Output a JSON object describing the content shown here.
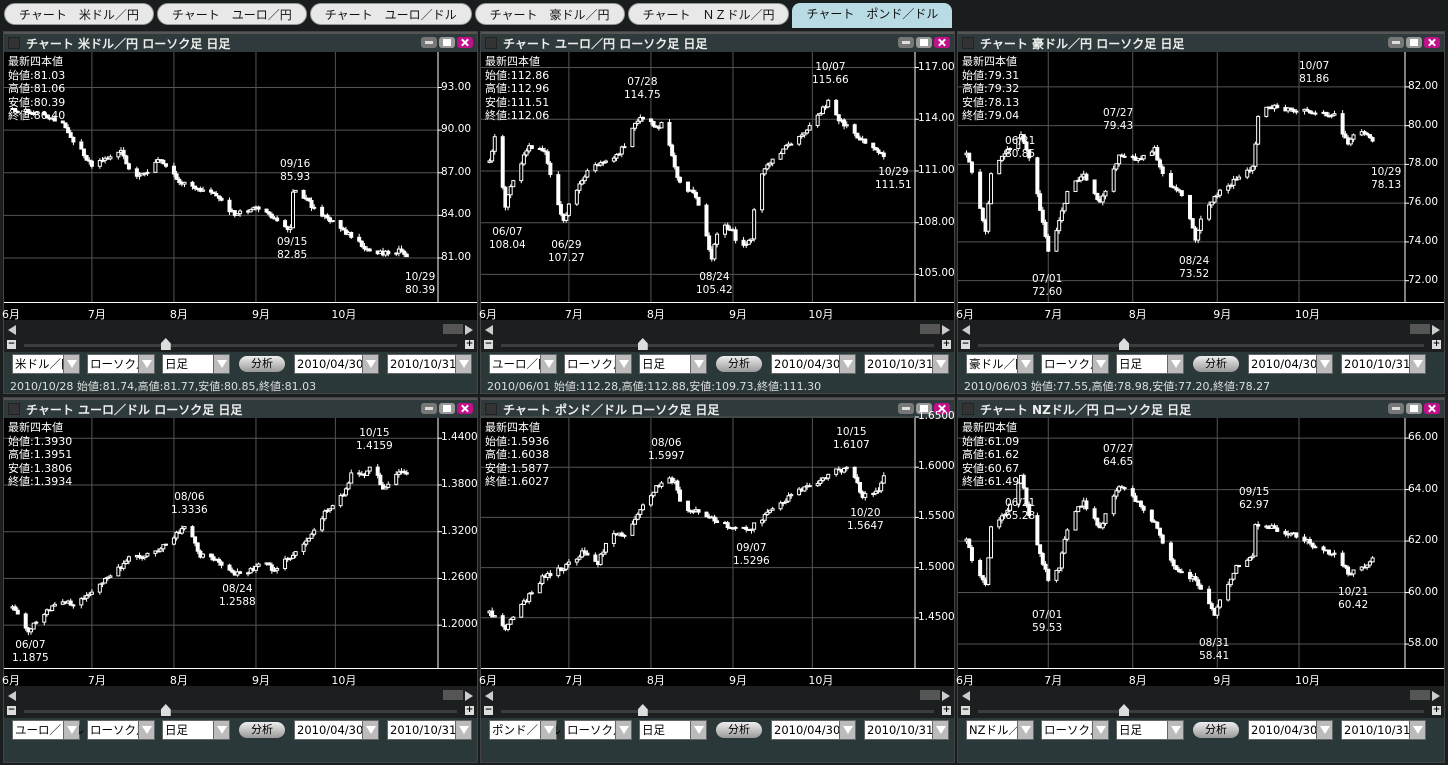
{
  "tabs": [
    {
      "label": "チャート　米ドル／円",
      "active": false
    },
    {
      "label": "チャート　ユーロ／円",
      "active": false
    },
    {
      "label": "チャート　ユーロ／ドル",
      "active": false
    },
    {
      "label": "チャート　豪ドル／円",
      "active": false
    },
    {
      "label": "チャート　ＮＺドル／円",
      "active": false
    },
    {
      "label": "チャート　ポンド／ドル",
      "active": true
    }
  ],
  "common": {
    "info_heading": "最新四本値",
    "open_label": "始値:",
    "high_label": "高値:",
    "low_label": "安値:",
    "close_label": "終値:",
    "months": [
      "6月",
      "7月",
      "8月",
      "9月",
      "10月"
    ],
    "chart_type": "ローソク足",
    "period": "日足",
    "analyze_label": "分析",
    "start_date": "2010/04/30",
    "end_date": "2010/10/31",
    "minus": "−",
    "plus": "+",
    "colors": {
      "background": "#000000",
      "candle": "#ffffff",
      "grid": "#555555",
      "panel": "#2a383a",
      "close_button": "#c0108a",
      "active_tab": "#b9dbe3"
    }
  },
  "panels": [
    {
      "title": "チャート 米ドル／円 ローソク足 日足",
      "symbol": "米ドル／円",
      "info": {
        "open": "81.03",
        "high": "81.06",
        "low": "80.39",
        "close": "80.40"
      },
      "status": "2010/10/28 始値:81.74,高値:81.77,安値:80.85,終値:81.03",
      "chart_data": {
        "type": "candlestick",
        "ylim": [
          77.9,
          95.5
        ],
        "yticks": [
          81,
          84,
          87,
          90,
          93
        ],
        "ytick_labels": [
          "81.00",
          "84.00",
          "87.00",
          "90.00",
          "93.00"
        ],
        "path": [
          [
            "06-01",
            91.5
          ],
          [
            "06-10",
            91.2
          ],
          [
            "06-20",
            90.5
          ],
          [
            "06-25",
            89.0
          ],
          [
            "07-01",
            87.5
          ],
          [
            "07-05",
            87.8
          ],
          [
            "07-12",
            88.7
          ],
          [
            "07-16",
            86.8
          ],
          [
            "07-22",
            87.0
          ],
          [
            "07-27",
            88.0
          ],
          [
            "08-02",
            86.5
          ],
          [
            "08-10",
            85.8
          ],
          [
            "08-16",
            85.5
          ],
          [
            "08-24",
            84.0
          ],
          [
            "08-31",
            84.5
          ],
          [
            "09-08",
            83.9
          ],
          [
            "09-14",
            83.0
          ],
          [
            "09-15",
            85.5
          ],
          [
            "09-16",
            85.8
          ],
          [
            "09-22",
            84.7
          ],
          [
            "09-30",
            83.5
          ],
          [
            "10-07",
            82.5
          ],
          [
            "10-14",
            81.5
          ],
          [
            "10-22",
            81.3
          ],
          [
            "10-26",
            81.6
          ],
          [
            "10-29",
            80.6
          ]
        ],
        "annotations": [
          {
            "date": "09/16",
            "value": "85.93",
            "kind": "high"
          },
          {
            "date": "09/15",
            "value": "82.85",
            "kind": "low"
          },
          {
            "date": "10/29",
            "value": "80.39",
            "kind": "low"
          }
        ]
      }
    },
    {
      "title": "チャート ユーロ／円 ローソク足 日足",
      "symbol": "ユーロ／円",
      "info": {
        "open": "112.86",
        "high": "112.96",
        "low": "111.51",
        "close": "112.06"
      },
      "status": "2010/06/01 始値:112.28,高値:112.88,安値:109.73,終値:111.30",
      "chart_data": {
        "type": "candlestick",
        "ylim": [
          103.4,
          117.9
        ],
        "yticks": [
          105,
          108,
          111,
          114,
          117
        ],
        "ytick_labels": [
          "105.00",
          "108.00",
          "111.00",
          "114.00",
          "117.00"
        ],
        "path": [
          [
            "06-01",
            111.5
          ],
          [
            "06-03",
            113.0
          ],
          [
            "06-07",
            109.0
          ],
          [
            "06-10",
            110.5
          ],
          [
            "06-16",
            112.5
          ],
          [
            "06-22",
            112.0
          ],
          [
            "06-29",
            108.0
          ],
          [
            "07-02",
            109.5
          ],
          [
            "07-08",
            111.0
          ],
          [
            "07-14",
            111.5
          ],
          [
            "07-20",
            112.0
          ],
          [
            "07-28",
            114.2
          ],
          [
            "08-03",
            113.5
          ],
          [
            "08-06",
            113.8
          ],
          [
            "08-11",
            110.5
          ],
          [
            "08-18",
            109.5
          ],
          [
            "08-24",
            106.0
          ],
          [
            "08-27",
            108.0
          ],
          [
            "09-01",
            107.5
          ],
          [
            "09-03",
            106.5
          ],
          [
            "09-08",
            107.0
          ],
          [
            "09-10",
            110.5
          ],
          [
            "09-15",
            111.5
          ],
          [
            "09-22",
            112.5
          ],
          [
            "09-30",
            113.5
          ],
          [
            "10-07",
            115.0
          ],
          [
            "10-11",
            114.0
          ],
          [
            "10-18",
            113.0
          ],
          [
            "10-22",
            112.5
          ],
          [
            "10-29",
            111.7
          ]
        ],
        "annotations": [
          {
            "date": "07/28",
            "value": "114.75",
            "kind": "high"
          },
          {
            "date": "10/07",
            "value": "115.66",
            "kind": "high"
          },
          {
            "date": "06/07",
            "value": "108.04",
            "kind": "low"
          },
          {
            "date": "06/29",
            "value": "107.27",
            "kind": "low"
          },
          {
            "date": "08/24",
            "value": "105.42",
            "kind": "low"
          },
          {
            "date": "10/29",
            "value": "111.51",
            "kind": "low"
          }
        ]
      }
    },
    {
      "title": "チャート 豪ドル／円 ローソク足 日足",
      "symbol": "豪ドル／円",
      "info": {
        "open": "79.31",
        "high": "79.32",
        "low": "78.13",
        "close": "79.04"
      },
      "status": "2010/06/03 始値:77.55,高値:78.98,安値:77.20,終値:78.27",
      "chart_data": {
        "type": "candlestick",
        "ylim": [
          70.9,
          83.8
        ],
        "yticks": [
          72,
          74,
          76,
          78,
          80,
          82
        ],
        "ytick_labels": [
          "72.00",
          "74.00",
          "76.00",
          "78.00",
          "80.00",
          "82.00"
        ],
        "path": [
          [
            "06-01",
            78.5
          ],
          [
            "06-04",
            77.0
          ],
          [
            "06-08",
            74.5
          ],
          [
            "06-10",
            77.5
          ],
          [
            "06-15",
            78.5
          ],
          [
            "06-21",
            79.5
          ],
          [
            "06-25",
            78.0
          ],
          [
            "07-01",
            73.5
          ],
          [
            "07-06",
            75.5
          ],
          [
            "07-09",
            77.0
          ],
          [
            "07-14",
            77.5
          ],
          [
            "07-20",
            76.0
          ],
          [
            "07-27",
            78.5
          ],
          [
            "08-03",
            78.2
          ],
          [
            "08-09",
            78.8
          ],
          [
            "08-13",
            77.0
          ],
          [
            "08-19",
            76.5
          ],
          [
            "08-24",
            74.2
          ],
          [
            "08-27",
            75.5
          ],
          [
            "09-03",
            76.8
          ],
          [
            "09-08",
            77.2
          ],
          [
            "09-14",
            77.8
          ],
          [
            "09-16",
            80.5
          ],
          [
            "09-20",
            81.0
          ],
          [
            "09-30",
            80.8
          ],
          [
            "10-07",
            80.7
          ],
          [
            "10-14",
            80.5
          ],
          [
            "10-19",
            79.0
          ],
          [
            "10-22",
            79.7
          ],
          [
            "10-26",
            79.5
          ],
          [
            "10-29",
            78.9
          ]
        ],
        "annotations": [
          {
            "date": "06/21",
            "value": "80.85",
            "kind": "high"
          },
          {
            "date": "07/27",
            "value": "79.43",
            "kind": "high"
          },
          {
            "date": "10/07",
            "value": "81.86",
            "kind": "high"
          },
          {
            "date": "07/01",
            "value": "72.60",
            "kind": "low"
          },
          {
            "date": "08/24",
            "value": "73.52",
            "kind": "low"
          },
          {
            "date": "10/29",
            "value": "78.13",
            "kind": "low"
          }
        ]
      }
    },
    {
      "title": "チャート ユーロ／ドル ローソク足 日足",
      "symbol": "ユーロ／ドル",
      "info": {
        "open": "1.3930",
        "high": "1.3951",
        "low": "1.3806",
        "close": "1.3934"
      },
      "status": "",
      "chart_data": {
        "type": "candlestick",
        "ylim": [
          1.145,
          1.466
        ],
        "yticks": [
          1.2,
          1.26,
          1.32,
          1.38,
          1.44
        ],
        "ytick_labels": [
          "1.2000",
          "1.2600",
          "1.3200",
          "1.3800",
          "1.4400"
        ],
        "path": [
          [
            "06-01",
            1.222
          ],
          [
            "06-07",
            1.193
          ],
          [
            "06-10",
            1.205
          ],
          [
            "06-18",
            1.232
          ],
          [
            "06-25",
            1.225
          ],
          [
            "07-01",
            1.245
          ],
          [
            "07-08",
            1.262
          ],
          [
            "07-15",
            1.285
          ],
          [
            "07-23",
            1.29
          ],
          [
            "07-30",
            1.306
          ],
          [
            "08-06",
            1.33
          ],
          [
            "08-11",
            1.29
          ],
          [
            "08-17",
            1.285
          ],
          [
            "08-24",
            1.267
          ],
          [
            "08-31",
            1.27
          ],
          [
            "09-03",
            1.283
          ],
          [
            "09-08",
            1.27
          ],
          [
            "09-13",
            1.285
          ],
          [
            "09-20",
            1.305
          ],
          [
            "09-27",
            1.345
          ],
          [
            "10-04",
            1.37
          ],
          [
            "10-07",
            1.393
          ],
          [
            "10-12",
            1.39
          ],
          [
            "10-15",
            1.405
          ],
          [
            "10-19",
            1.375
          ],
          [
            "10-25",
            1.395
          ],
          [
            "10-29",
            1.393
          ]
        ],
        "annotations": [
          {
            "date": "08/06",
            "value": "1.3336",
            "kind": "high"
          },
          {
            "date": "10/15",
            "value": "1.4159",
            "kind": "high"
          },
          {
            "date": "06/07",
            "value": "1.1875",
            "kind": "low"
          },
          {
            "date": "08/24",
            "value": "1.2588",
            "kind": "low"
          }
        ]
      }
    },
    {
      "title": "チャート ポンド／ドル ローソク足 日足",
      "symbol": "ポンド／ドル",
      "info": {
        "open": "1.5936",
        "high": "1.6038",
        "low": "1.5877",
        "close": "1.6027"
      },
      "status": "",
      "chart_data": {
        "type": "candlestick",
        "ylim": [
          1.4,
          1.649
        ],
        "yticks": [
          1.45,
          1.5,
          1.55,
          1.6,
          1.65
        ],
        "ytick_labels": [
          "1.4500",
          "1.5000",
          "1.5500",
          "1.6000",
          "1.6500"
        ],
        "path": [
          [
            "06-01",
            1.455
          ],
          [
            "06-07",
            1.44
          ],
          [
            "06-14",
            1.465
          ],
          [
            "06-21",
            1.49
          ],
          [
            "06-29",
            1.5
          ],
          [
            "07-06",
            1.515
          ],
          [
            "07-12",
            1.505
          ],
          [
            "07-16",
            1.53
          ],
          [
            "07-23",
            1.535
          ],
          [
            "07-30",
            1.565
          ],
          [
            "08-06",
            1.59
          ],
          [
            "08-10",
            1.585
          ],
          [
            "08-13",
            1.56
          ],
          [
            "08-20",
            1.555
          ],
          [
            "08-26",
            1.545
          ],
          [
            "09-07",
            1.537
          ],
          [
            "09-10",
            1.545
          ],
          [
            "09-15",
            1.555
          ],
          [
            "09-24",
            1.575
          ],
          [
            "10-01",
            1.582
          ],
          [
            "10-08",
            1.595
          ],
          [
            "10-15",
            1.598
          ],
          [
            "10-20",
            1.572
          ],
          [
            "10-26",
            1.575
          ],
          [
            "10-29",
            1.603
          ]
        ],
        "annotations": [
          {
            "date": "08/06",
            "value": "1.5997",
            "kind": "high"
          },
          {
            "date": "10/15",
            "value": "1.6107",
            "kind": "high"
          },
          {
            "date": "09/07",
            "value": "1.5296",
            "kind": "low"
          },
          {
            "date": "10/20",
            "value": "1.5647",
            "kind": "low"
          }
        ]
      }
    },
    {
      "title": "チャート NZドル／円 ローソク足 日足",
      "symbol": "NZドル／円",
      "info": {
        "open": "61.09",
        "high": "61.62",
        "low": "60.67",
        "close": "61.49"
      },
      "status": "",
      "chart_data": {
        "type": "candlestick",
        "ylim": [
          57.07,
          66.78
        ],
        "yticks": [
          58,
          60,
          62,
          64,
          66
        ],
        "ytick_labels": [
          "58.00",
          "60.00",
          "62.00",
          "64.00",
          "66.00"
        ],
        "path": [
          [
            "06-01",
            62.0
          ],
          [
            "06-04",
            61.0
          ],
          [
            "06-08",
            60.3
          ],
          [
            "06-10",
            62.5
          ],
          [
            "06-15",
            63.0
          ],
          [
            "06-21",
            64.5
          ],
          [
            "06-25",
            62.5
          ],
          [
            "07-01",
            60.5
          ],
          [
            "07-05",
            61.0
          ],
          [
            "07-09",
            63.0
          ],
          [
            "07-14",
            63.5
          ],
          [
            "07-20",
            62.5
          ],
          [
            "07-27",
            64.2
          ],
          [
            "08-03",
            63.5
          ],
          [
            "08-10",
            62.5
          ],
          [
            "08-16",
            61.0
          ],
          [
            "08-24",
            60.5
          ],
          [
            "08-31",
            59.2
          ],
          [
            "09-03",
            60.0
          ],
          [
            "09-08",
            61.0
          ],
          [
            "09-14",
            61.5
          ],
          [
            "09-15",
            62.7
          ],
          [
            "09-22",
            62.5
          ],
          [
            "09-30",
            62.2
          ],
          [
            "10-07",
            61.8
          ],
          [
            "10-14",
            61.5
          ],
          [
            "10-19",
            60.8
          ],
          [
            "10-21",
            60.8
          ],
          [
            "10-26",
            61.0
          ],
          [
            "10-29",
            61.4
          ]
        ],
        "annotations": [
          {
            "date": "06/21",
            "value": "65.28",
            "kind": "high"
          },
          {
            "date": "07/27",
            "value": "64.65",
            "kind": "high"
          },
          {
            "date": "09/15",
            "value": "62.97",
            "kind": "high"
          },
          {
            "date": "07/01",
            "value": "59.53",
            "kind": "low"
          },
          {
            "date": "08/31",
            "value": "58.41",
            "kind": "low"
          },
          {
            "date": "10/21",
            "value": "60.42",
            "kind": "low"
          }
        ]
      }
    }
  ]
}
